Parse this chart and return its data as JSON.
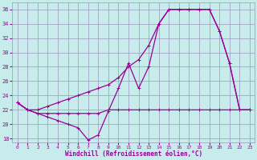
{
  "xlabel": "Windchill (Refroidissement éolien,°C)",
  "bg_color": "#c8ecec",
  "grid_color": "#9999bb",
  "line_color": "#990099",
  "xlim": [
    -0.5,
    23.5
  ],
  "ylim": [
    17.5,
    37
  ],
  "yticks": [
    18,
    20,
    22,
    24,
    26,
    28,
    30,
    32,
    34,
    36
  ],
  "xticks": [
    0,
    1,
    2,
    3,
    4,
    5,
    6,
    7,
    8,
    9,
    10,
    11,
    12,
    13,
    14,
    15,
    16,
    17,
    18,
    19,
    20,
    21,
    22,
    23
  ],
  "series1_x": [
    0,
    1,
    2,
    3,
    4,
    5,
    6,
    7,
    8,
    9,
    10,
    11,
    12,
    13,
    14,
    15,
    16,
    17,
    18,
    19,
    20,
    21,
    22,
    23
  ],
  "series1_y": [
    23,
    22,
    21.5,
    21,
    20.5,
    20,
    19.5,
    17.8,
    18.5,
    21.8,
    25,
    28.5,
    25,
    28,
    34,
    36,
    36,
    36,
    36,
    36,
    33,
    28.5,
    22,
    22
  ],
  "series2_x": [
    0,
    1,
    2,
    3,
    4,
    5,
    6,
    7,
    8,
    9,
    10,
    11,
    12,
    13,
    14,
    15,
    16,
    17,
    18,
    19,
    20,
    21,
    22,
    23
  ],
  "series2_y": [
    23,
    22,
    21.5,
    21.5,
    21.5,
    21.5,
    21.5,
    21.5,
    21.5,
    22,
    22,
    22,
    22,
    22,
    22,
    22,
    22,
    22,
    22,
    22,
    22,
    22,
    22,
    22
  ],
  "series3_x": [
    0,
    1,
    2,
    3,
    4,
    5,
    6,
    7,
    8,
    9,
    10,
    11,
    12,
    13,
    14,
    15,
    16,
    17,
    18,
    19,
    20,
    21,
    22,
    23
  ],
  "series3_y": [
    23,
    22,
    22,
    22.5,
    23,
    23.5,
    24,
    24.5,
    25,
    25.5,
    26.5,
    28,
    29,
    31,
    34,
    36,
    36,
    36,
    36,
    36,
    33,
    28.5,
    22,
    22
  ]
}
